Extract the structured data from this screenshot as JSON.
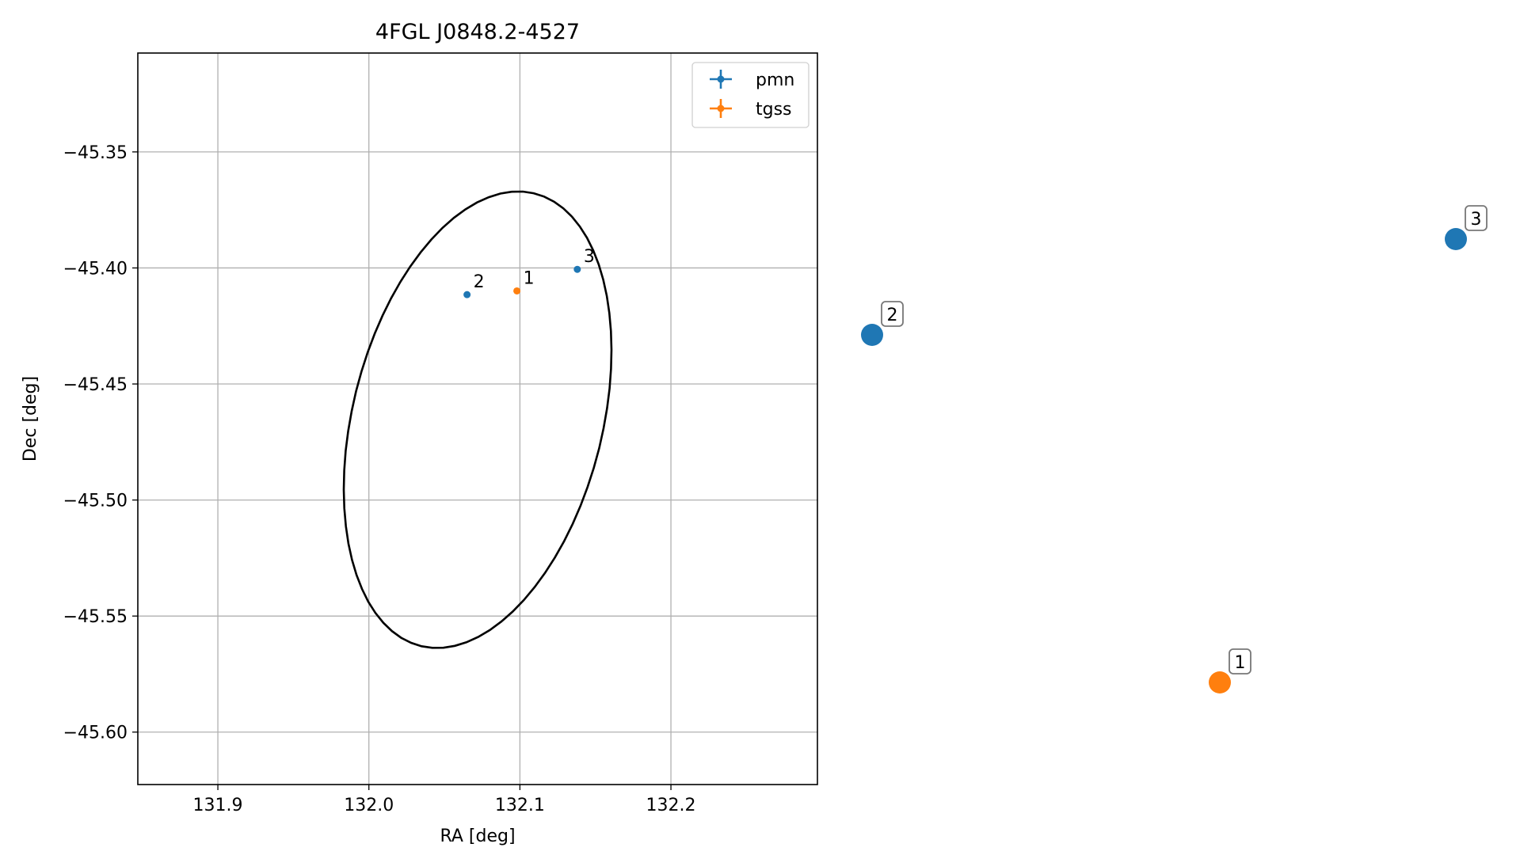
{
  "chart_data": [
    {
      "type": "scatter",
      "title": "4FGL J0848.2-4527",
      "xlabel": "RA [deg]",
      "ylabel": "Dec [deg]",
      "xlim": [
        131.847,
        132.297
      ],
      "ylim": [
        -45.6226,
        -45.3074
      ],
      "xticks": [
        131.9,
        132.0,
        132.1,
        132.2
      ],
      "xtick_labels": [
        "131.9",
        "132.0",
        "132.1",
        "132.2"
      ],
      "yticks": [
        -45.35,
        -45.4,
        -45.45,
        -45.5,
        -45.55,
        -45.6
      ],
      "ytick_labels": [
        "−45.35",
        "−45.40",
        "−45.45",
        "−45.50",
        "−45.55",
        "−45.60"
      ],
      "grid": true,
      "legend_position": "top-right",
      "ellipse": {
        "center_ra": 132.072,
        "center_dec": -45.4654,
        "semi_major_deg": 0.1075,
        "semi_minor_deg": 0.0773,
        "angle_deg": 54.5,
        "color": "#000000"
      },
      "series": [
        {
          "name": "pmn",
          "color": "#1f77b4",
          "points": [
            {
              "label": "2",
              "ra": 132.065,
              "dec": -45.4115
            },
            {
              "label": "3",
              "ra": 132.138,
              "dec": -45.4006
            }
          ]
        },
        {
          "name": "tgss",
          "color": "#ff7f0e",
          "points": [
            {
              "label": "1",
              "ra": 132.098,
              "dec": -45.4099
            }
          ]
        }
      ]
    },
    {
      "type": "scatter",
      "axes_visible": false,
      "points": [
        {
          "label": "2",
          "series": "pmn",
          "color": "#1f77b4"
        },
        {
          "label": "3",
          "series": "pmn",
          "color": "#1f77b4"
        },
        {
          "label": "1",
          "series": "tgss",
          "color": "#ff7f0e"
        }
      ]
    }
  ]
}
